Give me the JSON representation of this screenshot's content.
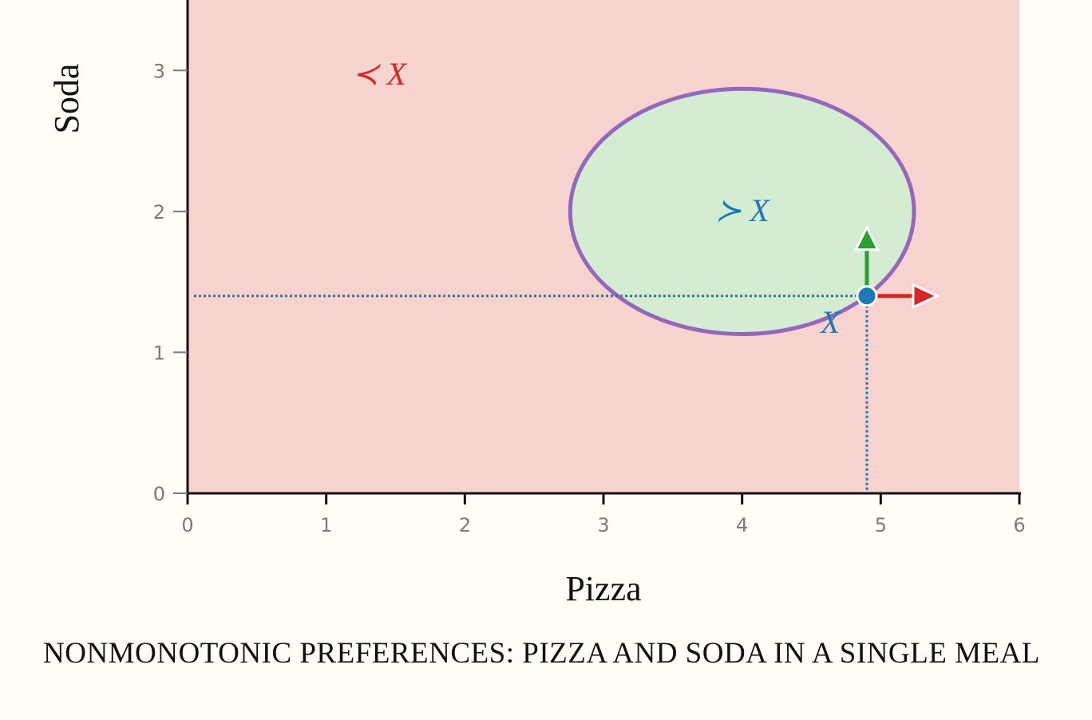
{
  "chart_data": {
    "type": "scatter",
    "xlabel": "Pizza",
    "ylabel": "Soda",
    "xlim": [
      0,
      6
    ],
    "ylim": [
      0,
      3.5
    ],
    "x_ticks": [
      0,
      1,
      2,
      3,
      4,
      5,
      6
    ],
    "y_ticks": [
      0,
      1,
      2,
      3
    ],
    "point": {
      "x": 4.9,
      "y": 1.4,
      "label": "X"
    },
    "better_set": {
      "center_x": 4,
      "center_y": 2,
      "radius_x": 1.24,
      "radius_y": 0.87,
      "label": "≻ X"
    },
    "worse_set": {
      "label": "≺ X"
    },
    "arrows": [
      {
        "direction": "up",
        "color": "#2ca02c"
      },
      {
        "direction": "right",
        "color": "#d62728"
      }
    ],
    "colors": {
      "worse_fill": "#f7d3cf",
      "better_fill": "#d4ecd2",
      "ellipse_stroke": "#9467bd",
      "point": "#1f77b4",
      "worse_label": "#d62728",
      "better_label": "#1f77b4"
    }
  },
  "caption": "NONMONOTONIC PREFERENCES: PIZZA AND SODA IN A SINGLE MEAL"
}
